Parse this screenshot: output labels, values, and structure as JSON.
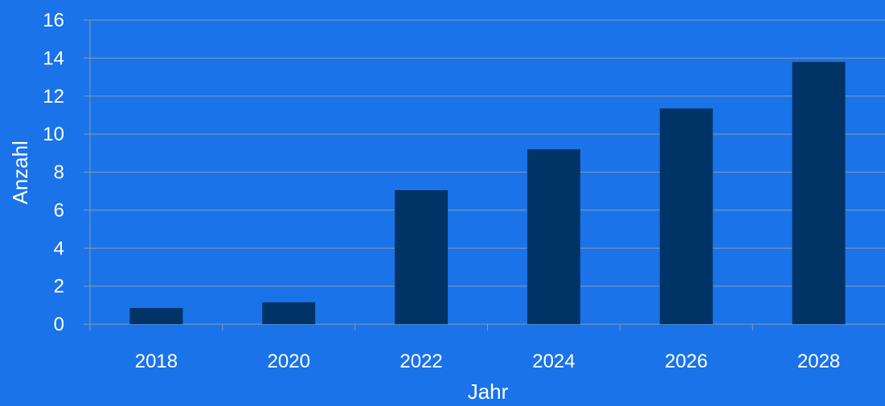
{
  "colors": {
    "background": "#1a73e8",
    "bar": "#003366",
    "grid": "#8a9bb0",
    "text": "#ffffff"
  },
  "chart_data": {
    "type": "bar",
    "categories": [
      "2018",
      "2020",
      "2022",
      "2024",
      "2026",
      "2028"
    ],
    "values": [
      0.85,
      1.15,
      7.05,
      9.2,
      11.35,
      13.8
    ],
    "title": "",
    "xlabel": "Jahr",
    "ylabel": "Anzahl",
    "ylim": [
      0,
      16
    ],
    "yticks": [
      "0",
      "2",
      "4",
      "6",
      "8",
      "10",
      "12",
      "14",
      "16"
    ],
    "grid": true
  }
}
